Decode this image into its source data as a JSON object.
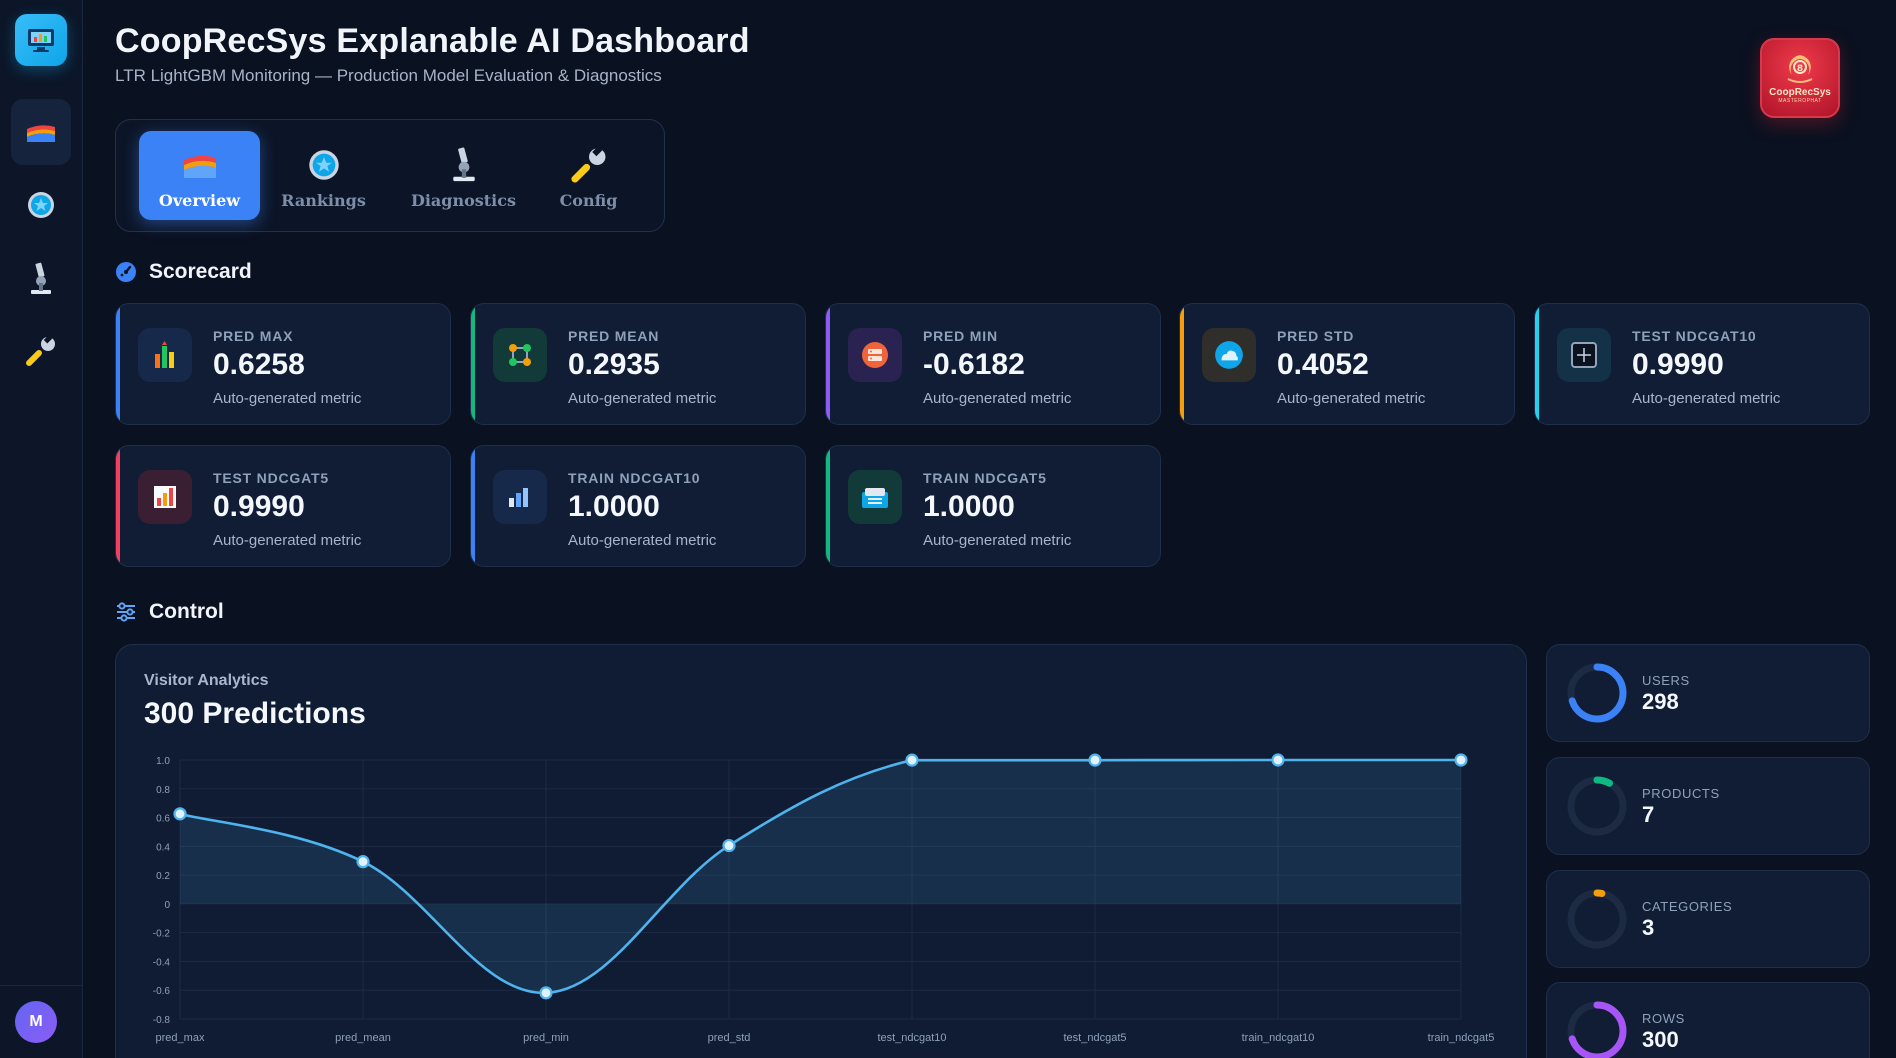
{
  "header": {
    "title": "CoopRecSys Explanable AI Dashboard",
    "subtitle": "LTR LightGBM Monitoring — Production Model Evaluation & Diagnostics"
  },
  "brand": {
    "name": "CoopRecSys",
    "tagline": "MASTEROPHAT"
  },
  "sidebar": {
    "items": [
      {
        "icon": "rainbow-chart-icon",
        "active": true
      },
      {
        "icon": "star-badge-icon",
        "active": false
      },
      {
        "icon": "microscope-icon",
        "active": false
      },
      {
        "icon": "wrench-icon",
        "active": false
      }
    ],
    "avatar_initial": "M"
  },
  "tabs": [
    {
      "label": "Overview",
      "icon": "rainbow-chart-icon",
      "active": true
    },
    {
      "label": "Rankings",
      "icon": "star-badge-icon",
      "active": false
    },
    {
      "label": "Diagnostics",
      "icon": "microscope-icon",
      "active": false
    },
    {
      "label": "Config",
      "icon": "wrench-icon",
      "active": false
    }
  ],
  "scorecard": {
    "title": "Scorecard",
    "cards": [
      {
        "label": "PRED MAX",
        "value": "0.6258",
        "desc": "Auto-generated metric",
        "accent": "#3b82f6",
        "icon": "chart-bars-icon"
      },
      {
        "label": "PRED MEAN",
        "value": "0.2935",
        "desc": "Auto-generated metric",
        "accent": "#10b981",
        "icon": "nodes-icon"
      },
      {
        "label": "PRED MIN",
        "value": "-0.6182",
        "desc": "Auto-generated metric",
        "accent": "#8b5cf6",
        "icon": "server-icon"
      },
      {
        "label": "PRED STD",
        "value": "0.4052",
        "desc": "Auto-generated metric",
        "accent": "#f59e0b",
        "icon": "cloud-icon"
      },
      {
        "label": "TEST NDCGAT10",
        "value": "0.9990",
        "desc": "Auto-generated metric",
        "accent": "#22d3ee",
        "icon": "plus-box-icon"
      },
      {
        "label": "TEST NDCGAT5",
        "value": "0.9990",
        "desc": "Auto-generated metric",
        "accent": "#f43f5e",
        "icon": "bar-chart-icon"
      },
      {
        "label": "TRAIN NDCGAT10",
        "value": "1.0000",
        "desc": "Auto-generated metric",
        "accent": "#3b82f6",
        "icon": "column-chart-icon"
      },
      {
        "label": "TRAIN NDCGAT5",
        "value": "1.0000",
        "desc": "Auto-generated metric",
        "accent": "#10b981",
        "icon": "database-icon"
      }
    ]
  },
  "control": {
    "title": "Control",
    "chart_kicker": "Visitor Analytics",
    "chart_title": "300 Predictions"
  },
  "chart_data": {
    "type": "area",
    "categories": [
      "pred_max",
      "pred_mean",
      "pred_min",
      "pred_std",
      "test_ndcgat10",
      "test_ndcgat5",
      "train_ndcgat10",
      "train_ndcgat5"
    ],
    "values": [
      0.6258,
      0.2935,
      -0.6182,
      0.4052,
      0.999,
      0.999,
      1.0,
      1.0
    ],
    "y_ticks": [
      "1.0",
      "0.8",
      "0.6",
      "0.4",
      "0.2",
      "0",
      "-0.2",
      "-0.4",
      "-0.6",
      "-0.8"
    ],
    "ylim": [
      -0.8,
      1.0
    ],
    "grid": true,
    "color": "#4fb4ee"
  },
  "stats": [
    {
      "label": "USERS",
      "value": "298",
      "fraction": 0.7,
      "color": "#3b82f6"
    },
    {
      "label": "PRODUCTS",
      "value": "7",
      "fraction": 0.08,
      "color": "#10b981"
    },
    {
      "label": "CATEGORIES",
      "value": "3",
      "fraction": 0.03,
      "color": "#f59e0b"
    },
    {
      "label": "ROWS",
      "value": "300",
      "fraction": 0.7,
      "color": "#a855f7"
    }
  ]
}
